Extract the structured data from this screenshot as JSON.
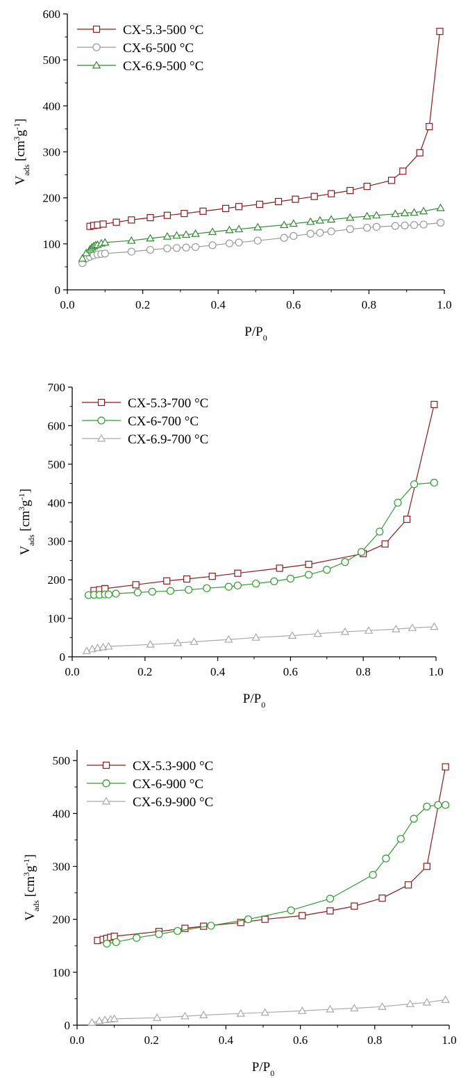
{
  "chart_data": [
    {
      "type": "line",
      "xlabel": "P/P",
      "xlabel_sub": "0",
      "ylabel": "V",
      "ylabel_sub": "ads",
      "yunit_prefix": "[cm",
      "yunit_sup1": "3",
      "yunit_mid": "g",
      "yunit_sup2": "-1",
      "yunit_suffix": "]",
      "xlim": [
        0,
        1
      ],
      "ylim": [
        0,
        600
      ],
      "xticks": [
        "0.0",
        "0.2",
        "0.4",
        "0.6",
        "0.8",
        "1.0"
      ],
      "yticks": [
        "0",
        "100",
        "200",
        "300",
        "400",
        "500",
        "600"
      ],
      "xtick_values": [
        0,
        0.2,
        0.4,
        0.6,
        0.8,
        1.0
      ],
      "ytick_values": [
        0,
        100,
        200,
        300,
        400,
        500,
        600
      ],
      "legend": "top-left",
      "series": [
        {
          "name": "CX-5.3-500 °C",
          "color": "#8b1a1a",
          "marker": "square",
          "points": [
            [
              0.06,
              138
            ],
            [
              0.07,
              140
            ],
            [
              0.08,
              141
            ],
            [
              0.095,
              143
            ],
            [
              0.13,
              147
            ],
            [
              0.17,
              152
            ],
            [
              0.22,
              157
            ],
            [
              0.265,
              162
            ],
            [
              0.31,
              166
            ],
            [
              0.36,
              171
            ],
            [
              0.42,
              177
            ],
            [
              0.455,
              181
            ],
            [
              0.51,
              186
            ],
            [
              0.56,
              192
            ],
            [
              0.605,
              197
            ],
            [
              0.655,
              203
            ],
            [
              0.7,
              209
            ],
            [
              0.75,
              216
            ],
            [
              0.795,
              225
            ],
            [
              0.86,
              238
            ],
            [
              0.89,
              258
            ],
            [
              0.935,
              298
            ],
            [
              0.96,
              355
            ],
            [
              0.988,
              562
            ]
          ]
        },
        {
          "name": "CX-6-500 °C",
          "color": "#999999",
          "marker": "circle",
          "points": [
            [
              0.04,
              58
            ],
            [
              0.05,
              68
            ],
            [
              0.06,
              72
            ],
            [
              0.07,
              75
            ],
            [
              0.08,
              77
            ],
            [
              0.09,
              78
            ],
            [
              0.1,
              79
            ],
            [
              0.17,
              83
            ],
            [
              0.22,
              87
            ],
            [
              0.265,
              90
            ],
            [
              0.29,
              91
            ],
            [
              0.315,
              92
            ],
            [
              0.34,
              93
            ],
            [
              0.385,
              97
            ],
            [
              0.43,
              101
            ],
            [
              0.455,
              103
            ],
            [
              0.505,
              107
            ],
            [
              0.575,
              113
            ],
            [
              0.6,
              117
            ],
            [
              0.645,
              122
            ],
            [
              0.67,
              124
            ],
            [
              0.7,
              127
            ],
            [
              0.75,
              132
            ],
            [
              0.795,
              135
            ],
            [
              0.82,
              137
            ],
            [
              0.87,
              139
            ],
            [
              0.895,
              140
            ],
            [
              0.92,
              141
            ],
            [
              0.945,
              142
            ],
            [
              0.99,
              146
            ]
          ]
        },
        {
          "name": "CX-6.9-500 °C",
          "color": "#2e8b2e",
          "marker": "triangle",
          "points": [
            [
              0.04,
              68
            ],
            [
              0.05,
              80
            ],
            [
              0.06,
              88
            ],
            [
              0.065,
              92
            ],
            [
              0.07,
              95
            ],
            [
              0.075,
              97
            ],
            [
              0.08,
              98
            ],
            [
              0.09,
              101
            ],
            [
              0.1,
              103
            ],
            [
              0.17,
              107
            ],
            [
              0.22,
              112
            ],
            [
              0.265,
              116
            ],
            [
              0.29,
              118
            ],
            [
              0.315,
              120
            ],
            [
              0.34,
              122
            ],
            [
              0.385,
              126
            ],
            [
              0.43,
              130
            ],
            [
              0.455,
              132
            ],
            [
              0.505,
              136
            ],
            [
              0.575,
              141
            ],
            [
              0.6,
              144
            ],
            [
              0.645,
              148
            ],
            [
              0.67,
              151
            ],
            [
              0.7,
              153
            ],
            [
              0.75,
              157
            ],
            [
              0.795,
              160
            ],
            [
              0.82,
              162
            ],
            [
              0.87,
              165
            ],
            [
              0.895,
              167
            ],
            [
              0.92,
              168
            ],
            [
              0.945,
              171
            ],
            [
              0.99,
              178
            ]
          ]
        }
      ]
    },
    {
      "type": "line",
      "xlabel": "P/P",
      "xlabel_sub": "0",
      "ylabel": "V",
      "ylabel_sub": "ads",
      "yunit_prefix": "[cm",
      "yunit_sup1": "3",
      "yunit_mid": "g",
      "yunit_sup2": "-1",
      "yunit_suffix": "]",
      "xlim": [
        0,
        1
      ],
      "ylim": [
        0,
        700
      ],
      "xticks": [
        "0.0",
        "0.2",
        "0.4",
        "0.6",
        "0.8",
        "1.0"
      ],
      "yticks": [
        "0",
        "100",
        "200",
        "300",
        "400",
        "500",
        "600",
        "700"
      ],
      "xtick_values": [
        0,
        0.2,
        0.4,
        0.6,
        0.8,
        1.0
      ],
      "ytick_values": [
        0,
        100,
        200,
        300,
        400,
        500,
        600,
        700
      ],
      "legend": "top-left",
      "series": [
        {
          "name": "CX-5.3-700 °C",
          "color": "#8b1a1a",
          "marker": "square",
          "points": [
            [
              0.06,
              172
            ],
            [
              0.075,
              174
            ],
            [
              0.09,
              177
            ],
            [
              0.175,
              187
            ],
            [
              0.26,
              197
            ],
            [
              0.315,
              202
            ],
            [
              0.385,
              209
            ],
            [
              0.455,
              217
            ],
            [
              0.57,
              230
            ],
            [
              0.65,
              240
            ],
            [
              0.8,
              268
            ],
            [
              0.86,
              293
            ],
            [
              0.92,
              357
            ],
            [
              0.995,
              655
            ]
          ]
        },
        {
          "name": "CX-6-700 °C",
          "color": "#2e9e2e",
          "marker": "circle",
          "points": [
            [
              0.045,
              160
            ],
            [
              0.06,
              161
            ],
            [
              0.075,
              161
            ],
            [
              0.09,
              162
            ],
            [
              0.1,
              162
            ],
            [
              0.12,
              164
            ],
            [
              0.18,
              167
            ],
            [
              0.22,
              169
            ],
            [
              0.27,
              171
            ],
            [
              0.32,
              174
            ],
            [
              0.37,
              178
            ],
            [
              0.43,
              182
            ],
            [
              0.455,
              185
            ],
            [
              0.505,
              190
            ],
            [
              0.555,
              196
            ],
            [
              0.6,
              203
            ],
            [
              0.65,
              213
            ],
            [
              0.7,
              226
            ],
            [
              0.75,
              246
            ],
            [
              0.795,
              272
            ],
            [
              0.845,
              325
            ],
            [
              0.895,
              400
            ],
            [
              0.94,
              448
            ],
            [
              0.995,
              452
            ]
          ]
        },
        {
          "name": "CX-6.9-700 °C",
          "color": "#aaaaaa",
          "marker": "triangle",
          "points": [
            [
              0.04,
              15
            ],
            [
              0.055,
              20
            ],
            [
              0.07,
              23
            ],
            [
              0.085,
              25
            ],
            [
              0.1,
              27
            ],
            [
              0.215,
              32
            ],
            [
              0.29,
              36
            ],
            [
              0.335,
              39
            ],
            [
              0.43,
              45
            ],
            [
              0.505,
              50
            ],
            [
              0.605,
              55
            ],
            [
              0.675,
              60
            ],
            [
              0.75,
              65
            ],
            [
              0.815,
              68
            ],
            [
              0.89,
              72
            ],
            [
              0.935,
              75
            ],
            [
              0.995,
              78
            ]
          ]
        }
      ]
    },
    {
      "type": "line",
      "xlabel": "P/P",
      "xlabel_sub": "0",
      "ylabel": "V",
      "ylabel_sub": "ads",
      "yunit_prefix": "[cm",
      "yunit_sup1": "3",
      "yunit_mid": "g",
      "yunit_sup2": "-1",
      "yunit_suffix": "]",
      "xlim": [
        0,
        1
      ],
      "ylim": [
        0,
        520
      ],
      "xticks": [
        "0.0",
        "0.2",
        "0.4",
        "0.6",
        "0.8",
        "1.0"
      ],
      "yticks": [
        "0",
        "100",
        "200",
        "300",
        "400",
        "500"
      ],
      "xtick_values": [
        0,
        0.2,
        0.4,
        0.6,
        0.8,
        1.0
      ],
      "ytick_values": [
        0,
        100,
        200,
        300,
        400,
        500
      ],
      "legend": "top-left",
      "series": [
        {
          "name": "CX-5.3-900 °C",
          "color": "#8b1a1a",
          "marker": "square",
          "points": [
            [
              0.055,
              160
            ],
            [
              0.07,
              162
            ],
            [
              0.08,
              164
            ],
            [
              0.09,
              166
            ],
            [
              0.1,
              168
            ],
            [
              0.22,
              177
            ],
            [
              0.29,
              183
            ],
            [
              0.34,
              187
            ],
            [
              0.44,
              194
            ],
            [
              0.505,
              200
            ],
            [
              0.605,
              207
            ],
            [
              0.68,
              216
            ],
            [
              0.745,
              225
            ],
            [
              0.82,
              240
            ],
            [
              0.89,
              265
            ],
            [
              0.94,
              300
            ],
            [
              0.99,
              488
            ]
          ]
        },
        {
          "name": "CX-6-900 °C",
          "color": "#2e9e2e",
          "marker": "circle",
          "points": [
            [
              0.08,
              154
            ],
            [
              0.105,
              157
            ],
            [
              0.16,
              165
            ],
            [
              0.22,
              172
            ],
            [
              0.27,
              178
            ],
            [
              0.36,
              188
            ],
            [
              0.46,
              200
            ],
            [
              0.575,
              217
            ],
            [
              0.68,
              239
            ],
            [
              0.795,
              284
            ],
            [
              0.83,
              315
            ],
            [
              0.87,
              352
            ],
            [
              0.905,
              390
            ],
            [
              0.94,
              413
            ],
            [
              0.97,
              416
            ],
            [
              0.99,
              416
            ]
          ]
        },
        {
          "name": "CX-6.9-900 °C",
          "color": "#aaaaaa",
          "marker": "triangle",
          "points": [
            [
              0.04,
              5
            ],
            [
              0.06,
              8
            ],
            [
              0.075,
              10
            ],
            [
              0.09,
              11
            ],
            [
              0.1,
              12
            ],
            [
              0.215,
              14
            ],
            [
              0.29,
              17
            ],
            [
              0.34,
              19
            ],
            [
              0.44,
              22
            ],
            [
              0.505,
              24
            ],
            [
              0.605,
              27
            ],
            [
              0.68,
              30
            ],
            [
              0.745,
              32
            ],
            [
              0.82,
              35
            ],
            [
              0.895,
              40
            ],
            [
              0.94,
              43
            ],
            [
              0.99,
              48
            ]
          ]
        }
      ]
    }
  ]
}
